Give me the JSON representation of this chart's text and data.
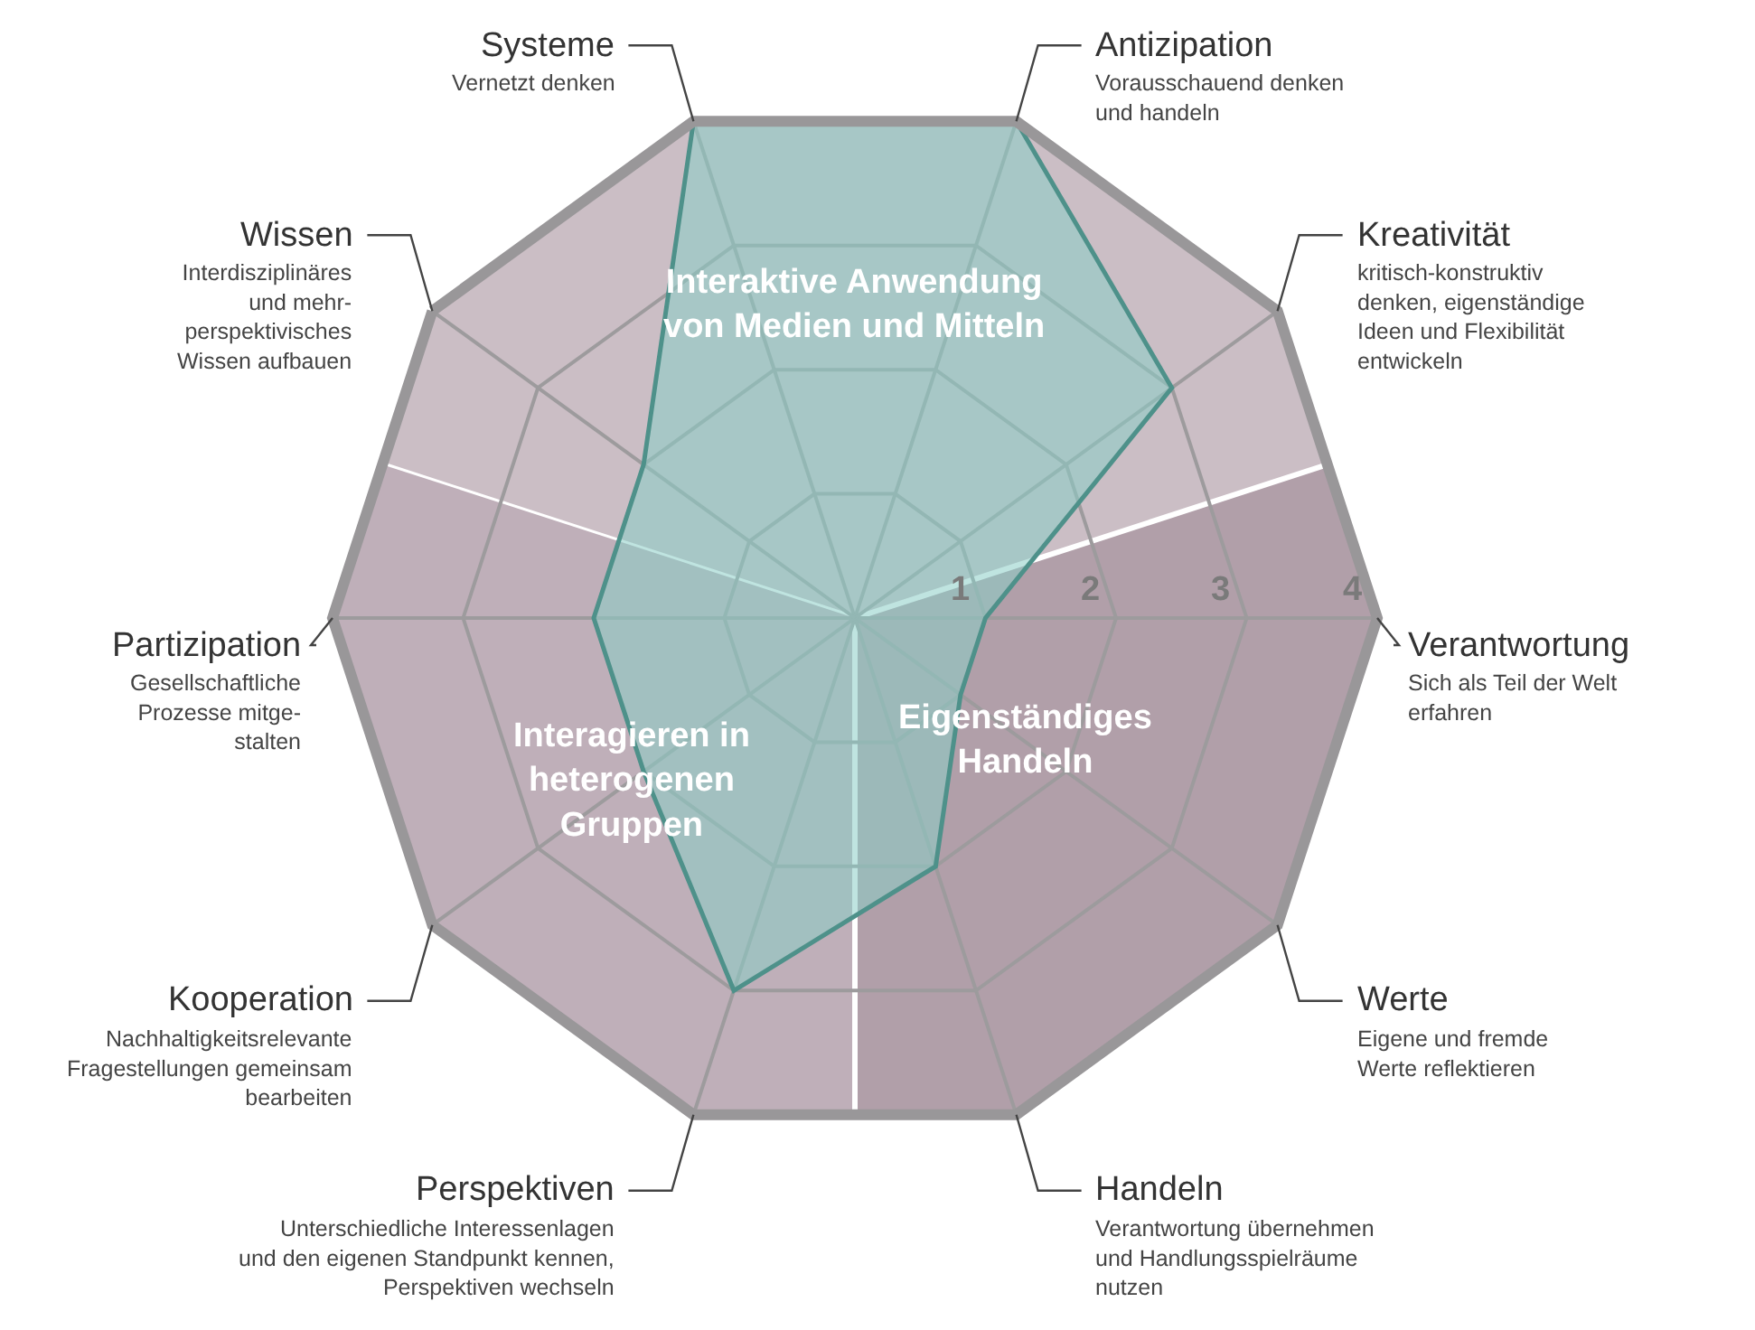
{
  "chart_data": {
    "type": "radar",
    "categories": [
      "Systeme",
      "Antizipation",
      "Kreativität",
      "Verantwortung",
      "Werte",
      "Handeln",
      "Perspektiven",
      "Kooperation",
      "Partizipation",
      "Wissen"
    ],
    "series": [
      {
        "color": "#4e918a",
        "values": [
          4,
          4,
          3,
          1,
          1,
          2,
          3,
          2,
          2,
          2
        ]
      }
    ],
    "ylim": [
      0,
      4
    ],
    "yticks": [
      1,
      2,
      3,
      4
    ],
    "grid": true,
    "annotations": [
      "Vernetzt denken",
      "Vorausschauend denken\nund handeln",
      "kritisch-konstruktiv\ndenken, eigenständige\nIdeen und Flexibilität\nentwickeln",
      "Sich als Teil der Welt\nerfahren",
      "Eigene und fremde\nWerte reflektieren",
      "Verantwortung übernehmen\nund Handlungsspielräume\nnutzen",
      "Unterschiedliche Interessenlagen\nund den eigenen Standpunkt kennen,\nPerspektiven wechseln",
      "Nachhaltigkeitsrelevante\nFragestellungen gemeinsam\nbearbeiten",
      "Gesellschaftliche\nProzesse mitge-\nstalten",
      "Interdisziplinäres\nund mehr-\nperspektivisches\nWissen aufbauen",
      "Interaktive Anwendung\nvon Medien und Mitteln",
      "Eigenständiges\nHandeln",
      "Interagieren in\nheterogenen\nGruppen"
    ]
  }
}
